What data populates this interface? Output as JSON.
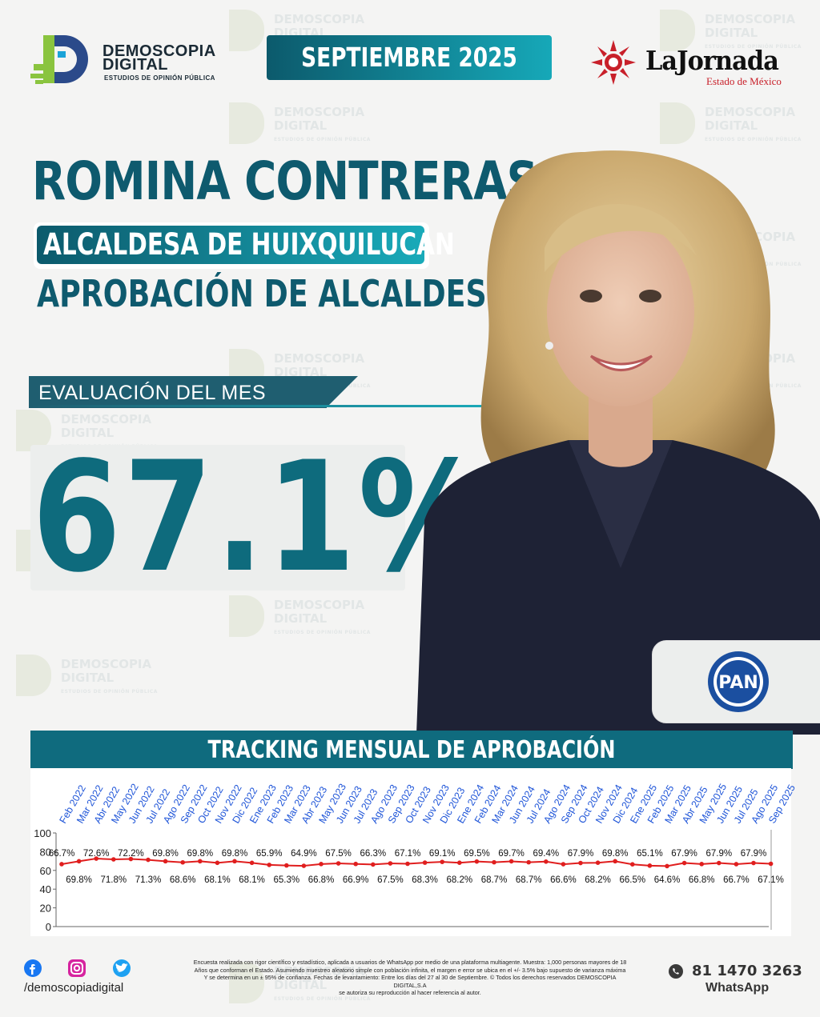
{
  "header": {
    "brand_name_line1": "DEMOSCOPIA",
    "brand_name_line2": "DIGITAL",
    "brand_tagline": "ESTUDIOS DE OPINIÓN PÚBLICA",
    "month": "SEPTIEMBRE 2025",
    "partner_name": "LaJornada",
    "partner_sub": "Estado de México"
  },
  "headline": {
    "name": "ROMINA CONTRERAS",
    "role": "ALCALDESA DE HUIXQUILUCAN",
    "topic": "APROBACIÓN DE ALCALDES",
    "eval_label": "EVALUACIÓN DEL MES",
    "eval_value": "67.1%",
    "party": "PAN"
  },
  "tracking": {
    "title": "TRACKING MENSUAL DE APROBACIÓN"
  },
  "chart_data": {
    "type": "line",
    "title": "TRACKING MENSUAL DE APROBACIÓN",
    "categories": [
      "Feb 2022",
      "Mar 2022",
      "Abr 2022",
      "May 2022",
      "Jun 2022",
      "Jul 2022",
      "Ago 2022",
      "Sep 2022",
      "Oct 2022",
      "Nov 2022",
      "Dic 2022",
      "Ene 2023",
      "Feb 2023",
      "Mar 2023",
      "Abr 2023",
      "May 2023",
      "Jun 2023",
      "Jul 2023",
      "Ago 2023",
      "Sep 2023",
      "Oct 2023",
      "Nov 2023",
      "Dic 2023",
      "Ene 2024",
      "Feb 2024",
      "Mar 2024",
      "Jun 2024",
      "Jul 2024",
      "Ago 2024",
      "Sep 2024",
      "Oct 2024",
      "Nov 2024",
      "Dic 2024",
      "Ene 2025",
      "Feb 2025",
      "Mar 2025",
      "Abr 2025",
      "May 2025",
      "Jun 2025",
      "Jul 2025",
      "Ago 2025",
      "Sep 2025"
    ],
    "values": [
      66.7,
      69.8,
      72.6,
      71.8,
      72.2,
      71.3,
      69.8,
      68.6,
      69.8,
      68.1,
      69.8,
      68.1,
      65.9,
      65.3,
      64.9,
      66.8,
      67.5,
      66.9,
      66.3,
      67.5,
      67.1,
      68.3,
      69.1,
      68.2,
      69.5,
      68.7,
      69.7,
      68.7,
      69.4,
      66.6,
      67.9,
      68.2,
      69.8,
      66.5,
      65.1,
      64.6,
      67.9,
      66.8,
      67.9,
      66.7,
      67.9,
      67.1
    ],
    "labels": [
      "66.7%",
      "69.8%",
      "72.6%",
      "71.8%",
      "72.2%",
      "71.3%",
      "69.8%",
      "68.6%",
      "69.8%",
      "68.1%",
      "69.8%",
      "68.1%",
      "65.9%",
      "65.3%",
      "64.9%",
      "66.8%",
      "67.5%",
      "66.9%",
      "66.3%",
      "67.5%",
      "67.1%",
      "68.3%",
      "69.1%",
      "68.2%",
      "69.5%",
      "68.7%",
      "69.7%",
      "68.7%",
      "69.4%",
      "66.6%",
      "67.9%",
      "68.2%",
      "69.8%",
      "66.5%",
      "65.1%",
      "64.6%",
      "67.9%",
      "66.8%",
      "67.9%",
      "66.7%",
      "67.9%",
      "67.1%"
    ],
    "y_ticks": [
      "0",
      "20",
      "40",
      "60",
      "80",
      "100"
    ],
    "ylim": [
      0,
      100
    ],
    "line_color": "#e01e1e",
    "grid": false
  },
  "footer": {
    "handle": "/demoscopiadigital",
    "legal_line1": "Encuesta realizada con rigor científico y estadístico, aplicada a usuarios de WhatsApp por medio de una plataforma multiagente. Muestra: 1,000 personas mayores de 18",
    "legal_line2": "Años que conforman el Estado. Asumiendo muestreo aleatorio simple con población infinita, el margen e error se ubica en el +/- 3.5% bajo supuesto de varianza máxima",
    "legal_line3": "Y se determina en un ± 95% de confianza. Fechas de levantamiento: Entre los días del 27 al 30 de Septiembre. © Todos los derechos reservados DEMOSCOPIA DIGITAL,S.A",
    "legal_line4": "se autoriza su reproducción al hacer referencia al autor.",
    "phone": "81 1470 3263",
    "phone_app": "WhatsApp"
  },
  "colors": {
    "teal_dark": "#0e5a6e",
    "teal_light": "#19aab9",
    "accent_red": "#e01e1e"
  }
}
